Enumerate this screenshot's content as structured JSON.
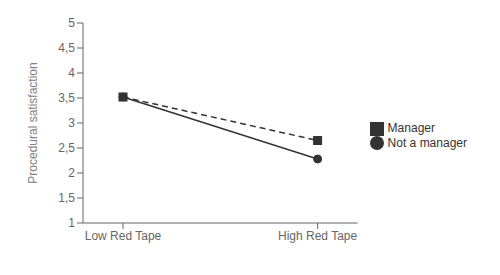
{
  "chart_data": {
    "type": "line",
    "categories": [
      "Low Red Tape",
      "High Red Tape"
    ],
    "series": [
      {
        "name": "Not a manager",
        "color": "#333333",
        "values": [
          3.52,
          2.28
        ],
        "marker": "circle",
        "line_style": "solid"
      },
      {
        "name": "Manager",
        "color": "#333333",
        "values": [
          3.52,
          2.65
        ],
        "marker": "square",
        "line_style": "dashed"
      }
    ],
    "ylabel": "Procedural satisfaction",
    "ylim": [
      1,
      5
    ],
    "yticks": [
      1,
      {
        "value": 1.5,
        "label": "1,5"
      },
      2,
      {
        "value": 2.5,
        "label": "2,5"
      },
      3,
      {
        "value": 3.5,
        "label": "3,5"
      },
      4,
      {
        "value": 4.5,
        "label": "4,5"
      },
      5
    ],
    "grid": false,
    "legend": "right"
  }
}
